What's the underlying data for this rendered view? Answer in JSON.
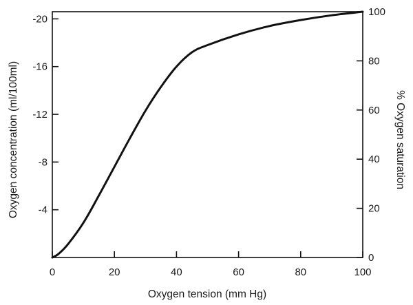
{
  "chart_data": {
    "type": "line",
    "title": "",
    "xlabel": "Oxygen tension (mm Hg)",
    "ylabel_left": "Oxygen concentration (ml/100ml)",
    "ylabel_right": "% Oxygen saturation",
    "xlim": [
      0,
      100
    ],
    "ylim_left": [
      0,
      20.6
    ],
    "ylim_right": [
      0,
      100
    ],
    "x_ticks": [
      {
        "value": 0,
        "label": "0"
      },
      {
        "value": 20,
        "label": "20"
      },
      {
        "value": 40,
        "label": "40"
      },
      {
        "value": 60,
        "label": "60"
      },
      {
        "value": 80,
        "label": "80"
      },
      {
        "value": 100,
        "label": "100"
      }
    ],
    "y_left_ticks": [
      {
        "value": 4,
        "label": "-4"
      },
      {
        "value": 8,
        "label": "-8"
      },
      {
        "value": 12,
        "label": "-12"
      },
      {
        "value": 16,
        "label": "-16"
      },
      {
        "value": 20,
        "label": "-20"
      }
    ],
    "y_right_ticks": [
      {
        "value": 0,
        "label": "0"
      },
      {
        "value": 20,
        "label": "20"
      },
      {
        "value": 40,
        "label": "40"
      },
      {
        "value": 60,
        "label": "60"
      },
      {
        "value": 80,
        "label": "80"
      },
      {
        "value": 100,
        "label": "100"
      }
    ],
    "grid": false,
    "line_color": "#111111",
    "series": [
      {
        "x": [
          0,
          2,
          5,
          10,
          15,
          20,
          25,
          30,
          35,
          40,
          45,
          50,
          60,
          70,
          80,
          90,
          100
        ],
        "y": [
          0,
          0.3,
          1.1,
          2.9,
          5.2,
          7.6,
          10.0,
          12.3,
          14.3,
          16.0,
          17.2,
          17.8,
          18.7,
          19.4,
          19.9,
          20.3,
          20.6
        ]
      }
    ]
  }
}
